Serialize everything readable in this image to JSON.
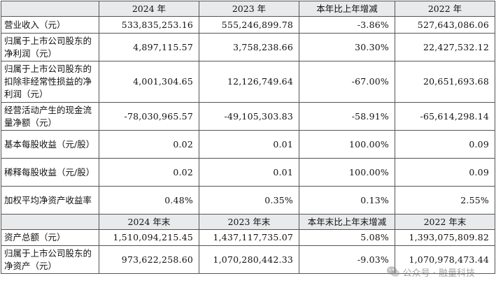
{
  "header": {
    "col1": "2024 年",
    "col2": "2023 年",
    "col3": "本年比上年增减",
    "col4": "2022 年"
  },
  "rows": [
    {
      "label": "营业收入（元）",
      "v1": "533,835,253.16",
      "v2": "555,246,899.78",
      "v3": "-3.86%",
      "v4": "527,643,086.06"
    },
    {
      "label": "归属于上市公司股东的净利润（元）",
      "v1": "4,897,115.57",
      "v2": "3,758,238.66",
      "v3": "30.30%",
      "v4": "22,427,532.12"
    },
    {
      "label": "归属于上市公司股东的扣除非经常性损益的净利润（元）",
      "v1": "4,001,304.65",
      "v2": "12,126,749.64",
      "v3": "-67.00%",
      "v4": "20,651,693.68"
    },
    {
      "label": "经营活动产生的现金流量净额（元）",
      "v1": "-78,030,965.57",
      "v2": "-49,105,303.83",
      "v3": "-58.91%",
      "v4": "-65,614,298.14"
    },
    {
      "label": "基本每股收益（元/股）",
      "v1": "0.02",
      "v2": "0.01",
      "v3": "100.00%",
      "v4": "0.09"
    },
    {
      "label": "稀释每股收益（元/股）",
      "v1": "0.02",
      "v2": "0.01",
      "v3": "100.00%",
      "v4": "0.09"
    },
    {
      "label": "加权平均净资产收益率",
      "v1": "0.48%",
      "v2": "0.35%",
      "v3": "0.13%",
      "v4": "2.55%"
    }
  ],
  "header2": {
    "col1": "2024 年末",
    "col2": "2023 年末",
    "col3": "本年末比上年末增减",
    "col4": "2022 年末"
  },
  "rows2": [
    {
      "label": "资产总额（元）",
      "v1": "1,510,094,215.45",
      "v2": "1,437,117,735.07",
      "v3": "5.08%",
      "v4": "1,393,075,809.82"
    },
    {
      "label": "归属于上市公司股东的净资产（元）",
      "v1": "973,622,258.60",
      "v2": "1,070,280,442.33",
      "v3": "-9.03%",
      "v4": "1,070,978,473.44"
    }
  ],
  "watermark": {
    "text": "公众号 · 融量科技",
    "icon": "wechat-icon"
  }
}
